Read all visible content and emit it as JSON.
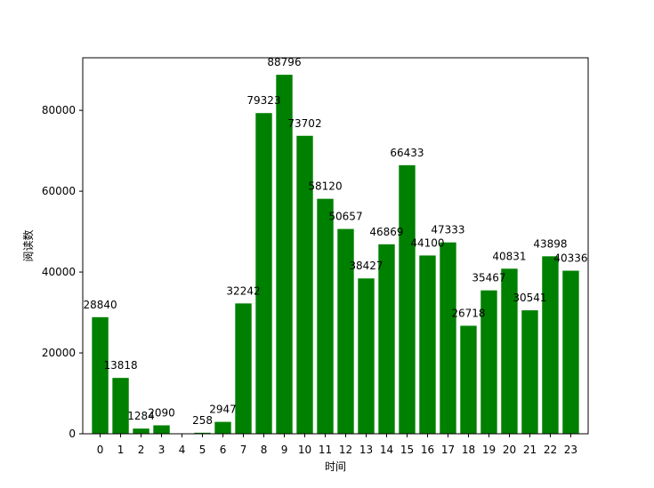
{
  "chart_data": {
    "type": "bar",
    "categories": [
      "0",
      "1",
      "2",
      "3",
      "4",
      "5",
      "6",
      "7",
      "8",
      "9",
      "10",
      "11",
      "12",
      "13",
      "14",
      "15",
      "16",
      "17",
      "18",
      "19",
      "20",
      "21",
      "22",
      "23"
    ],
    "values": [
      28840,
      13818,
      1284,
      2090,
      0,
      258,
      2947,
      32242,
      79323,
      88796,
      73702,
      58120,
      50657,
      38427,
      46869,
      66433,
      44100,
      47333,
      26718,
      35467,
      40831,
      30541,
      43898,
      40336
    ],
    "data_labels": [
      "28840",
      "13818",
      "1284",
      "2090",
      "",
      "258",
      "2947",
      "32242",
      "79323",
      "88796",
      "73702",
      "58120",
      "50657",
      "38427",
      "46869",
      "66433",
      "44100",
      "47333",
      "26718",
      "35467",
      "40831",
      "30541",
      "43898",
      "40336"
    ],
    "xlabel": "时间",
    "ylabel": "阅读数",
    "ylim": [
      0,
      93000
    ],
    "yticks": [
      0,
      20000,
      40000,
      60000,
      80000
    ],
    "ytick_labels": [
      "0",
      "20000",
      "40000",
      "60000",
      "80000"
    ],
    "bar_color": "#008000",
    "grid": false
  }
}
